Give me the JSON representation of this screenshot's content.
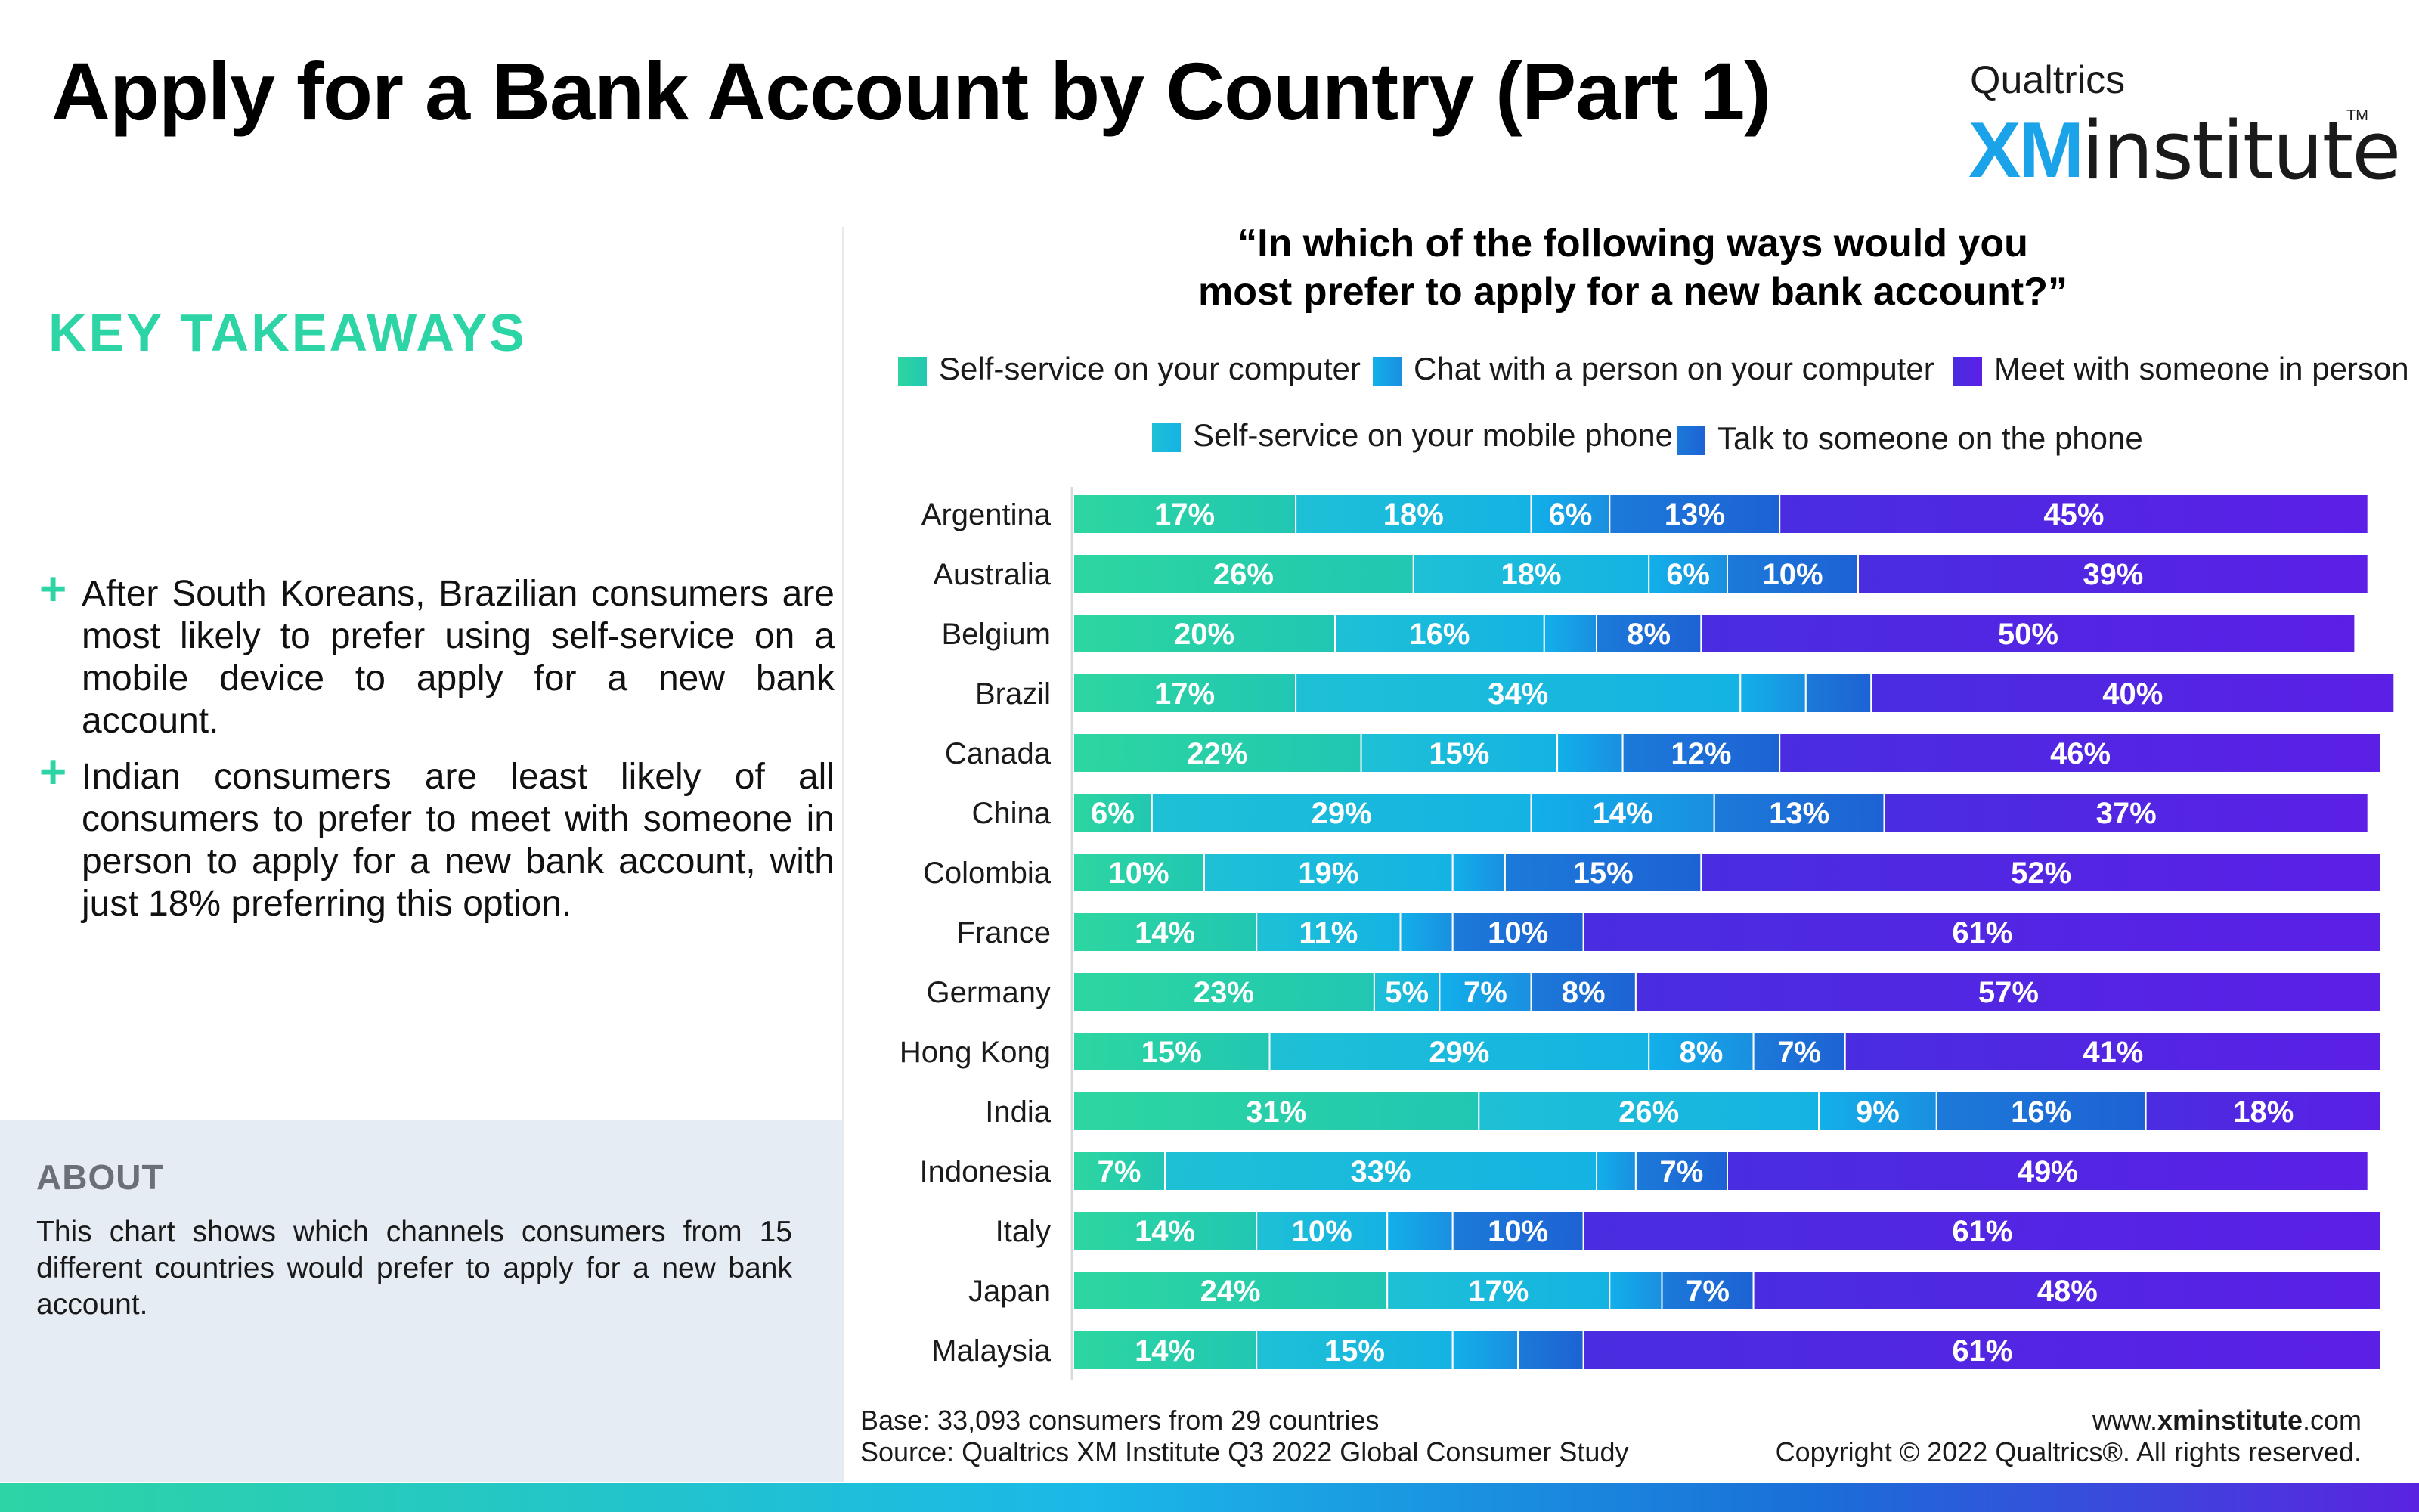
{
  "title": "Apply for a Bank Account by Country (Part 1)",
  "logo": {
    "top": "Qualtrics",
    "xm": "XM",
    "institute": "institute",
    "tm": "TM"
  },
  "key_takeaways": {
    "heading": "KEY TAKEAWAYS",
    "items": [
      "After South Koreans, Brazilian consumers are most likely to prefer using self-service on a mobile device to apply for a new bank account.",
      "Indian consumers are least likely of all consumers to prefer to meet with someone in person to apply for a new bank account, with just 18% preferring this option."
    ]
  },
  "about": {
    "heading": "ABOUT",
    "text": "This chart shows which channels consumers from 15 different countries would prefer to apply for a new bank account."
  },
  "footer": {
    "base": "Base: 33,093 consumers from 29 countries",
    "source": "Source: Qualtrics XM Institute Q3 2022 Global Consumer Study",
    "website_prefix": "www.",
    "website_bold": "xminstitute",
    "website_suffix": ".com",
    "copyright": "Copyright © 2022 Qualtrics®. All rights reserved."
  },
  "chart_data": {
    "type": "bar",
    "orientation": "horizontal",
    "stacked": true,
    "normalized_percent": true,
    "title": "“In which of the following ways would you most prefer to apply for a new bank account?”",
    "title_lines": [
      "“In which of the following ways would you",
      "most prefer to apply for a new bank account?”"
    ],
    "legend_position": "top",
    "categories": [
      "Argentina",
      "Australia",
      "Belgium",
      "Brazil",
      "Canada",
      "China",
      "Colombia",
      "France",
      "Germany",
      "Hong Kong",
      "India",
      "Indonesia",
      "Italy",
      "Japan",
      "Malaysia"
    ],
    "series": [
      {
        "name": "Self-service on your computer",
        "colors": [
          "#2dd6a0",
          "#21c7b2"
        ],
        "values": [
          17,
          26,
          20,
          17,
          22,
          6,
          10,
          14,
          23,
          15,
          31,
          7,
          14,
          24,
          14
        ]
      },
      {
        "name": "Self-service on your mobile phone",
        "colors": [
          "#1ec0d6",
          "#14b3e3"
        ],
        "values": [
          18,
          18,
          16,
          34,
          15,
          29,
          19,
          11,
          5,
          29,
          26,
          33,
          10,
          17,
          15
        ]
      },
      {
        "name": "Chat with a person on your computer",
        "colors": [
          "#12b0ea",
          "#1a8fe0"
        ],
        "values": [
          6,
          6,
          4,
          5,
          5,
          14,
          4,
          4,
          7,
          8,
          9,
          3,
          5,
          4,
          5
        ]
      },
      {
        "name": "Talk to someone on the phone",
        "colors": [
          "#1c7ad9",
          "#1d62d4"
        ],
        "values": [
          13,
          10,
          8,
          5,
          12,
          13,
          15,
          10,
          8,
          7,
          16,
          7,
          10,
          7,
          5
        ]
      },
      {
        "name": "Meet with someone in person",
        "colors": [
          "#4a2de0",
          "#5b1fe6"
        ],
        "values": [
          45,
          39,
          50,
          40,
          46,
          37,
          52,
          61,
          57,
          41,
          18,
          49,
          61,
          48,
          61
        ]
      }
    ],
    "labels_shown": [
      [
        "17%",
        "18%",
        "6%",
        "13%",
        "45%"
      ],
      [
        "26%",
        "18%",
        "6%",
        "10%",
        "39%"
      ],
      [
        "20%",
        "16%",
        "",
        "8%",
        "50%"
      ],
      [
        "17%",
        "34%",
        "",
        "",
        "40%"
      ],
      [
        "22%",
        "15%",
        "",
        "12%",
        "46%"
      ],
      [
        "6%",
        "29%",
        "14%",
        "13%",
        "37%"
      ],
      [
        "10%",
        "19%",
        "",
        "15%",
        "52%"
      ],
      [
        "14%",
        "11%",
        "",
        "10%",
        "61%"
      ],
      [
        "23%",
        "5%",
        "7%",
        "8%",
        "57%"
      ],
      [
        "15%",
        "29%",
        "8%",
        "7%",
        "41%"
      ],
      [
        "31%",
        "26%",
        "9%",
        "16%",
        "18%"
      ],
      [
        "7%",
        "33%",
        "",
        "7%",
        "49%"
      ],
      [
        "14%",
        "10%",
        "",
        "10%",
        "61%"
      ],
      [
        "24%",
        "17%",
        "",
        "7%",
        "48%"
      ],
      [
        "14%",
        "15%",
        "",
        "",
        "61%"
      ]
    ],
    "legend_rows": [
      [
        "Self-service on your computer",
        "Chat with a person on your computer",
        "Meet with someone in person"
      ],
      [
        "Self-service on your mobile phone",
        "Talk to someone on the phone"
      ]
    ],
    "xlim": [
      0,
      100
    ]
  }
}
